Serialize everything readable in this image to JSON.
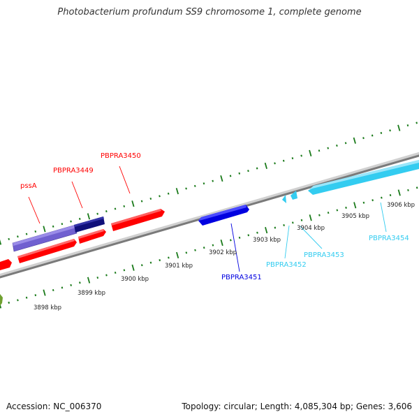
{
  "header": {
    "title": "Photobacterium profundum SS9 chromosome 1, complete genome"
  },
  "footer": {
    "accession": "Accession: NC_006370",
    "stats": "Topology: circular; Length: 4,085,304 bp; Genes: 3,606"
  },
  "colors": {
    "backbone": "#808080",
    "tick": "#1a7a1a",
    "red_gene": "#ff0000",
    "blue_gene": "#0000e0",
    "light_blue_gene": "#33ccf0",
    "purple_gene": "#7060d0",
    "navy_gene": "#10107a",
    "olive_gene": "#70a030"
  },
  "scale": {
    "unit": "kbp",
    "labels": [
      "3898 kbp",
      "3899 kbp",
      "3900 kbp",
      "3901 kbp",
      "3902 kbp",
      "3903 kbp",
      "3904 kbp",
      "3905 kbp",
      "3906 kbp"
    ]
  },
  "genes": [
    {
      "id": "pssA",
      "label": "pssA",
      "color": "#ff0000"
    },
    {
      "id": "PBPRA3449",
      "label": "PBPRA3449",
      "color": "#ff0000"
    },
    {
      "id": "PBPRA3450",
      "label": "PBPRA3450",
      "color": "#ff0000"
    },
    {
      "id": "PBPRA3451",
      "label": "PBPRA3451",
      "color": "#0000e0"
    },
    {
      "id": "PBPRA3452",
      "label": "PBPRA3452",
      "color": "#33ccf0"
    },
    {
      "id": "PBPRA3453",
      "label": "PBPRA3453",
      "color": "#33ccf0"
    },
    {
      "id": "PBPRA3454",
      "label": "PBPRA3454",
      "color": "#33ccf0"
    }
  ]
}
